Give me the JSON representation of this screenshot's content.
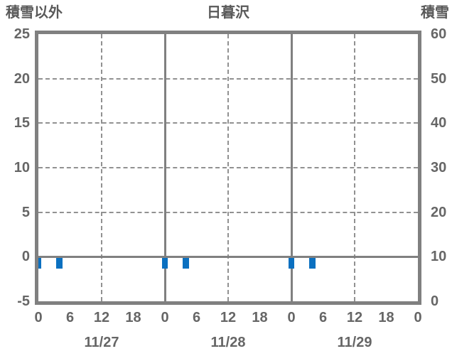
{
  "header": {
    "left_axis_label": "積雪以外",
    "title": "日暮沢",
    "right_axis_label": "積雪"
  },
  "chart_data": {
    "type": "bar",
    "title": "日暮沢",
    "left_axis": {
      "title": "積雪以外",
      "tick_labels": [
        "25",
        "20",
        "15",
        "10",
        "5",
        "0",
        "-5"
      ],
      "tick_values": [
        25,
        20,
        15,
        10,
        5,
        0,
        -5
      ],
      "min": -5,
      "max": 25
    },
    "right_axis": {
      "title": "積雪",
      "tick_labels": [
        "60",
        "50",
        "40",
        "30",
        "20",
        "10",
        "0"
      ],
      "tick_values": [
        60,
        50,
        40,
        30,
        20,
        10,
        0
      ],
      "min": 0,
      "max": 60
    },
    "x_axis": {
      "total_hours": 72,
      "tick_hours": [
        0,
        6,
        12,
        18,
        24,
        30,
        36,
        42,
        48,
        54,
        60,
        66,
        72
      ],
      "tick_labels": [
        "0",
        "6",
        "12",
        "18",
        "0",
        "6",
        "12",
        "18",
        "0",
        "6",
        "12",
        "18",
        "0"
      ],
      "days": [
        {
          "label": "11/27",
          "center_hour": 12
        },
        {
          "label": "11/28",
          "center_hour": 36
        },
        {
          "label": "11/29",
          "center_hour": 60
        }
      ]
    },
    "grid": {
      "h_dashed_at_left_values": [
        20,
        15,
        10,
        5
      ],
      "v_dashed_at_hours": [
        12,
        36,
        60
      ],
      "v_solid_at_hours": [
        24,
        48
      ],
      "zero_line_at_left_value": 0
    },
    "series": [
      {
        "name": "積雪以外",
        "type": "bar",
        "axis": "left",
        "bar_width_hours": 1.2,
        "points": [
          {
            "date": "11/27",
            "hour": 0,
            "hours_from_start": 0,
            "value": -1.3
          },
          {
            "date": "11/27",
            "hour": 4,
            "hours_from_start": 4,
            "value": -1.3
          },
          {
            "date": "11/28",
            "hour": 0,
            "hours_from_start": 24,
            "value": -1.3
          },
          {
            "date": "11/28",
            "hour": 4,
            "hours_from_start": 28,
            "value": -1.3
          },
          {
            "date": "11/29",
            "hour": 0,
            "hours_from_start": 48,
            "value": -1.3
          },
          {
            "date": "11/29",
            "hour": 4,
            "hours_from_start": 52,
            "value": -1.3
          }
        ]
      },
      {
        "name": "積雪",
        "type": "line",
        "axis": "right",
        "points": []
      }
    ],
    "colors": {
      "frame": "#808080",
      "grid": "#919191",
      "zero_line": "#808080",
      "day_line": "#808080",
      "bar": "#0b70c0",
      "text": "#616161",
      "background": "#ffffff"
    },
    "legend": "none"
  }
}
